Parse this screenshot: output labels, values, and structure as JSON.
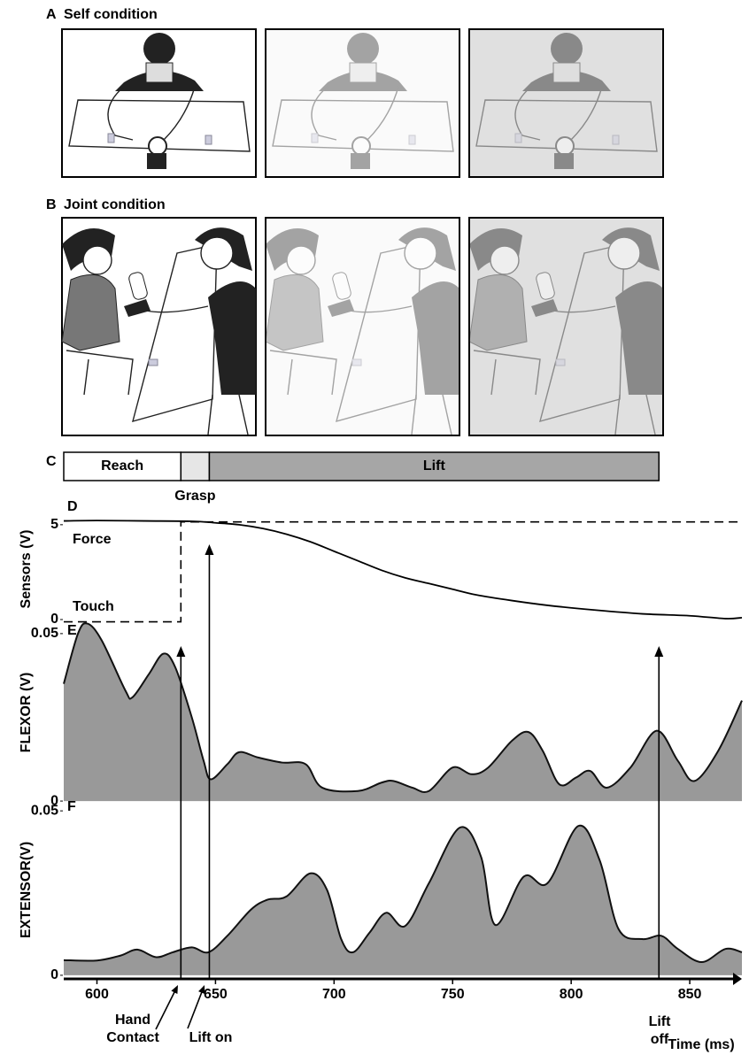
{
  "figure": {
    "panel_a": {
      "letter": "A",
      "title": "Self condition"
    },
    "panel_b": {
      "letter": "B",
      "title": "Joint condition"
    },
    "panel_c": {
      "letter": "C",
      "phases": [
        {
          "label": "Reach",
          "start": 586,
          "end": 635.4,
          "color": "#ffffff"
        },
        {
          "label": "Grasp",
          "start": 635.4,
          "end": 647.4,
          "color": "#e6e6e6"
        },
        {
          "label": "Lift",
          "start": 647.4,
          "end": 837,
          "color": "#a6a6a6"
        }
      ]
    }
  },
  "chart_data": [
    {
      "type": "line",
      "panel": "D",
      "ylabel": "Sensors (V)",
      "xlim": [
        586,
        872
      ],
      "ylim": [
        -0.28,
        5.6
      ],
      "yticks": [
        0,
        5
      ],
      "series": [
        {
          "name": "Force",
          "color": "#000000",
          "dash": false,
          "x": [
            586,
            600,
            620,
            640,
            650,
            660,
            670,
            680,
            690,
            700,
            710,
            720,
            730,
            740,
            750,
            760,
            775,
            790,
            810,
            830,
            850,
            865,
            872
          ],
          "values": [
            5.2,
            5.22,
            5.2,
            5.18,
            5.1,
            5.0,
            4.8,
            4.5,
            4.1,
            3.6,
            3.1,
            2.6,
            2.2,
            1.9,
            1.6,
            1.3,
            1.0,
            0.75,
            0.5,
            0.3,
            0.2,
            0.05,
            0.1
          ]
        },
        {
          "name": "Touch",
          "color": "#000000",
          "dash": true,
          "x": [
            586,
            635.4,
            635.4,
            872
          ],
          "values": [
            -0.12,
            -0.12,
            5.15,
            5.15
          ]
        }
      ]
    },
    {
      "type": "area",
      "panel": "E",
      "ylabel": "FLEXOR (V)",
      "xlim": [
        586,
        872
      ],
      "ylim": [
        -0.0013,
        0.0542
      ],
      "yticks": [
        0,
        0.05
      ],
      "color": "#999999",
      "x": [
        586,
        592,
        596,
        602,
        612,
        615,
        622,
        628,
        633,
        640,
        645,
        648,
        655,
        660,
        668,
        678,
        688,
        695,
        710,
        720,
        725,
        733,
        740,
        750,
        758,
        765,
        775,
        782,
        788,
        795,
        802,
        808,
        815,
        825,
        836,
        845,
        852,
        862,
        872
      ],
      "values": [
        0.035,
        0.05,
        0.053,
        0.048,
        0.033,
        0.031,
        0.038,
        0.044,
        0.04,
        0.025,
        0.012,
        0.0065,
        0.011,
        0.0146,
        0.013,
        0.0115,
        0.011,
        0.004,
        0.003,
        0.0055,
        0.006,
        0.004,
        0.003,
        0.01,
        0.008,
        0.01,
        0.018,
        0.0206,
        0.015,
        0.005,
        0.007,
        0.009,
        0.004,
        0.01,
        0.021,
        0.012,
        0.006,
        0.015,
        0.03
      ]
    },
    {
      "type": "area",
      "panel": "F",
      "ylabel": "EXTENSOR(V)",
      "xlabel": "Time (ms)",
      "xlim": [
        586,
        872
      ],
      "ylim": [
        -0.0011,
        0.053
      ],
      "yticks": [
        0,
        0.05
      ],
      "xticks": [
        600,
        650,
        700,
        750,
        800,
        850
      ],
      "color": "#999999",
      "x": [
        586,
        600,
        610,
        617,
        625,
        632,
        640,
        647,
        655,
        665,
        672,
        680,
        690,
        697,
        703,
        708,
        715,
        722,
        730,
        740,
        753,
        762,
        768,
        780,
        790,
        803,
        812,
        820,
        830,
        838,
        845,
        855,
        865,
        872
      ],
      "values": [
        0.0046,
        0.0045,
        0.006,
        0.0078,
        0.0055,
        0.007,
        0.0085,
        0.007,
        0.012,
        0.02,
        0.023,
        0.024,
        0.031,
        0.026,
        0.011,
        0.007,
        0.013,
        0.019,
        0.015,
        0.028,
        0.0449,
        0.036,
        0.0153,
        0.03,
        0.028,
        0.0454,
        0.035,
        0.014,
        0.011,
        0.012,
        0.008,
        0.004,
        0.008,
        0.007
      ]
    }
  ],
  "events": [
    {
      "label": [
        "Hand",
        "Contact"
      ],
      "x": 635.4
    },
    {
      "label": [
        "Lift on"
      ],
      "x": 647.4
    },
    {
      "label": [
        "Lift",
        "off"
      ],
      "x": 837
    }
  ]
}
